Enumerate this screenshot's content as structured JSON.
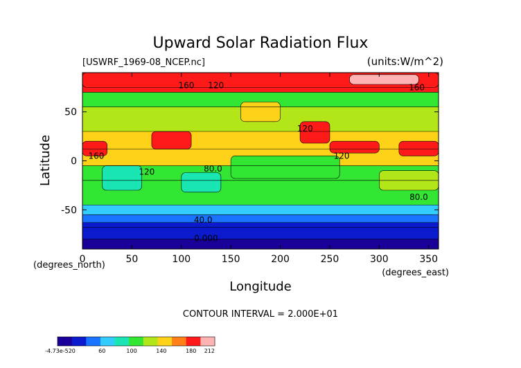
{
  "chart_data": {
    "type": "heatmap",
    "title": "Upward Solar Radiation Flux",
    "file_label": "[USWRF_1969-08_NCEP.nc]",
    "units_label": "(units:W/m^2)",
    "xlabel": "Longitude",
    "ylabel": "Latitude",
    "x_unit_label": "(degrees_east)",
    "y_unit_label": "(degrees_north)",
    "xlim": [
      0,
      360
    ],
    "ylim": [
      -90,
      90
    ],
    "x_ticks": [
      "0",
      "50",
      "100",
      "150",
      "200",
      "250",
      "300",
      "350"
    ],
    "y_ticks": [
      "50",
      "0",
      "-50"
    ],
    "contour_interval_text": "CONTOUR INTERVAL = 2.000E+01",
    "contour_labels": [
      {
        "text": "160",
        "lon": 105,
        "lat": 74
      },
      {
        "text": "120",
        "lon": 135,
        "lat": 74
      },
      {
        "text": "160",
        "lon": 338,
        "lat": 72
      },
      {
        "text": "120",
        "lon": 225,
        "lat": 30
      },
      {
        "text": "160",
        "lon": 14,
        "lat": 2
      },
      {
        "text": "120",
        "lon": 65,
        "lat": -14
      },
      {
        "text": "120",
        "lon": 262,
        "lat": 2
      },
      {
        "text": "80.0",
        "lon": 132,
        "lat": -11
      },
      {
        "text": "80.0",
        "lon": 340,
        "lat": -40
      },
      {
        "text": "40.0",
        "lon": 122,
        "lat": -63
      },
      {
        "text": "0.000",
        "lon": 125,
        "lat": -82
      }
    ],
    "bands": [
      {
        "lat_from": 90,
        "lat_to": 70,
        "value": 180
      },
      {
        "lat_from": 70,
        "lat_to": 55,
        "value": 110
      },
      {
        "lat_from": 55,
        "lat_to": 30,
        "value": 130
      },
      {
        "lat_from": 30,
        "lat_to": 12,
        "value": 150
      },
      {
        "lat_from": 12,
        "lat_to": -5,
        "value": 135
      },
      {
        "lat_from": -5,
        "lat_to": -20,
        "value": 100
      },
      {
        "lat_from": -20,
        "lat_to": -45,
        "value": 105
      },
      {
        "lat_from": -45,
        "lat_to": -55,
        "value": 70
      },
      {
        "lat_from": -55,
        "lat_to": -63,
        "value": 55
      },
      {
        "lat_from": -63,
        "lat_to": -68,
        "value": 35
      },
      {
        "lat_from": -68,
        "lat_to": -80,
        "value": 20
      },
      {
        "lat_from": -80,
        "lat_to": -90,
        "value": 0
      }
    ],
    "patches": [
      {
        "lon": [
          0,
          360
        ],
        "lat": [
          90,
          75
        ],
        "value": 190
      },
      {
        "lon": [
          270,
          340
        ],
        "lat": [
          88,
          78
        ],
        "value": 200
      },
      {
        "lon": [
          0,
          25
        ],
        "lat": [
          20,
          5
        ],
        "value": 175
      },
      {
        "lon": [
          70,
          110
        ],
        "lat": [
          30,
          12
        ],
        "value": 180
      },
      {
        "lon": [
          220,
          250
        ],
        "lat": [
          40,
          18
        ],
        "value": 185
      },
      {
        "lon": [
          160,
          200
        ],
        "lat": [
          60,
          40
        ],
        "value": 150
      },
      {
        "lon": [
          250,
          300
        ],
        "lat": [
          20,
          8
        ],
        "value": 175
      },
      {
        "lon": [
          320,
          360
        ],
        "lat": [
          20,
          5
        ],
        "value": 180
      },
      {
        "lon": [
          150,
          260
        ],
        "lat": [
          5,
          -18
        ],
        "value": 115
      },
      {
        "lon": [
          20,
          60
        ],
        "lat": [
          -5,
          -30
        ],
        "value": 90
      },
      {
        "lon": [
          100,
          140
        ],
        "lat": [
          -12,
          -32
        ],
        "value": 90
      },
      {
        "lon": [
          300,
          360
        ],
        "lat": [
          -10,
          -30
        ],
        "value": 120
      }
    ],
    "colorbar": {
      "stops": [
        "#1a0099",
        "#0a1acc",
        "#1a73ff",
        "#33ccff",
        "#19e6b3",
        "#33e633",
        "#b3e619",
        "#ffd21a",
        "#ff7f19",
        "#ff1a1a",
        "#ffb3b3"
      ],
      "labels": [
        "-4.73e-520",
        "60",
        "100",
        "140",
        "180",
        "212"
      ],
      "ticks": [
        0,
        60,
        100,
        140,
        180,
        212
      ]
    }
  }
}
